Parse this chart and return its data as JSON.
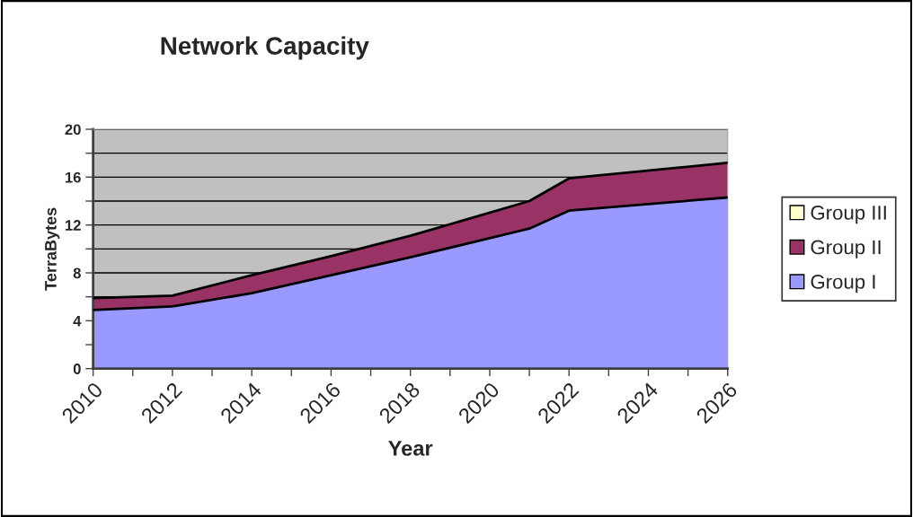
{
  "chart_data": {
    "type": "area",
    "stacked": true,
    "title": "Network Capacity",
    "xlabel": "Year",
    "ylabel": "TerraBytes",
    "x": [
      2010,
      2012,
      2014,
      2016,
      2018,
      2021,
      2022,
      2026
    ],
    "series": [
      {
        "name": "Group I",
        "color": "#9999ff",
        "values": [
          4.9,
          5.2,
          6.3,
          7.8,
          9.3,
          11.7,
          13.2,
          14.3
        ]
      },
      {
        "name": "Group II",
        "color": "#993366",
        "values": [
          1.0,
          0.9,
          1.5,
          1.6,
          1.8,
          2.3,
          2.7,
          2.9
        ]
      },
      {
        "name": "Group III",
        "color": "#ffffcc",
        "values": [
          null,
          null,
          null,
          null,
          null,
          null,
          null,
          null
        ]
      }
    ],
    "xlim": [
      2010,
      2026
    ],
    "xticks": [
      2010,
      {
        "value": 2011,
        "label": null
      },
      2012,
      {
        "value": 2013,
        "label": null
      },
      2014,
      {
        "value": 2015,
        "label": null
      },
      2016,
      {
        "value": 2017,
        "label": null
      },
      2018,
      {
        "value": 2019,
        "label": null
      },
      2020,
      {
        "value": 2021,
        "label": null
      },
      2022,
      {
        "value": 2023,
        "label": null
      },
      2024,
      {
        "value": 2025,
        "label": null
      },
      2026
    ],
    "ylim": [
      0,
      20
    ],
    "yticks": [
      0,
      {
        "value": 2,
        "label": null
      },
      4,
      {
        "value": 6,
        "label": null
      },
      8,
      {
        "value": 10,
        "label": null
      },
      12,
      {
        "value": 14,
        "label": null
      },
      16,
      {
        "value": 18,
        "label": null
      },
      20
    ],
    "grid": "y",
    "legend": "right"
  }
}
